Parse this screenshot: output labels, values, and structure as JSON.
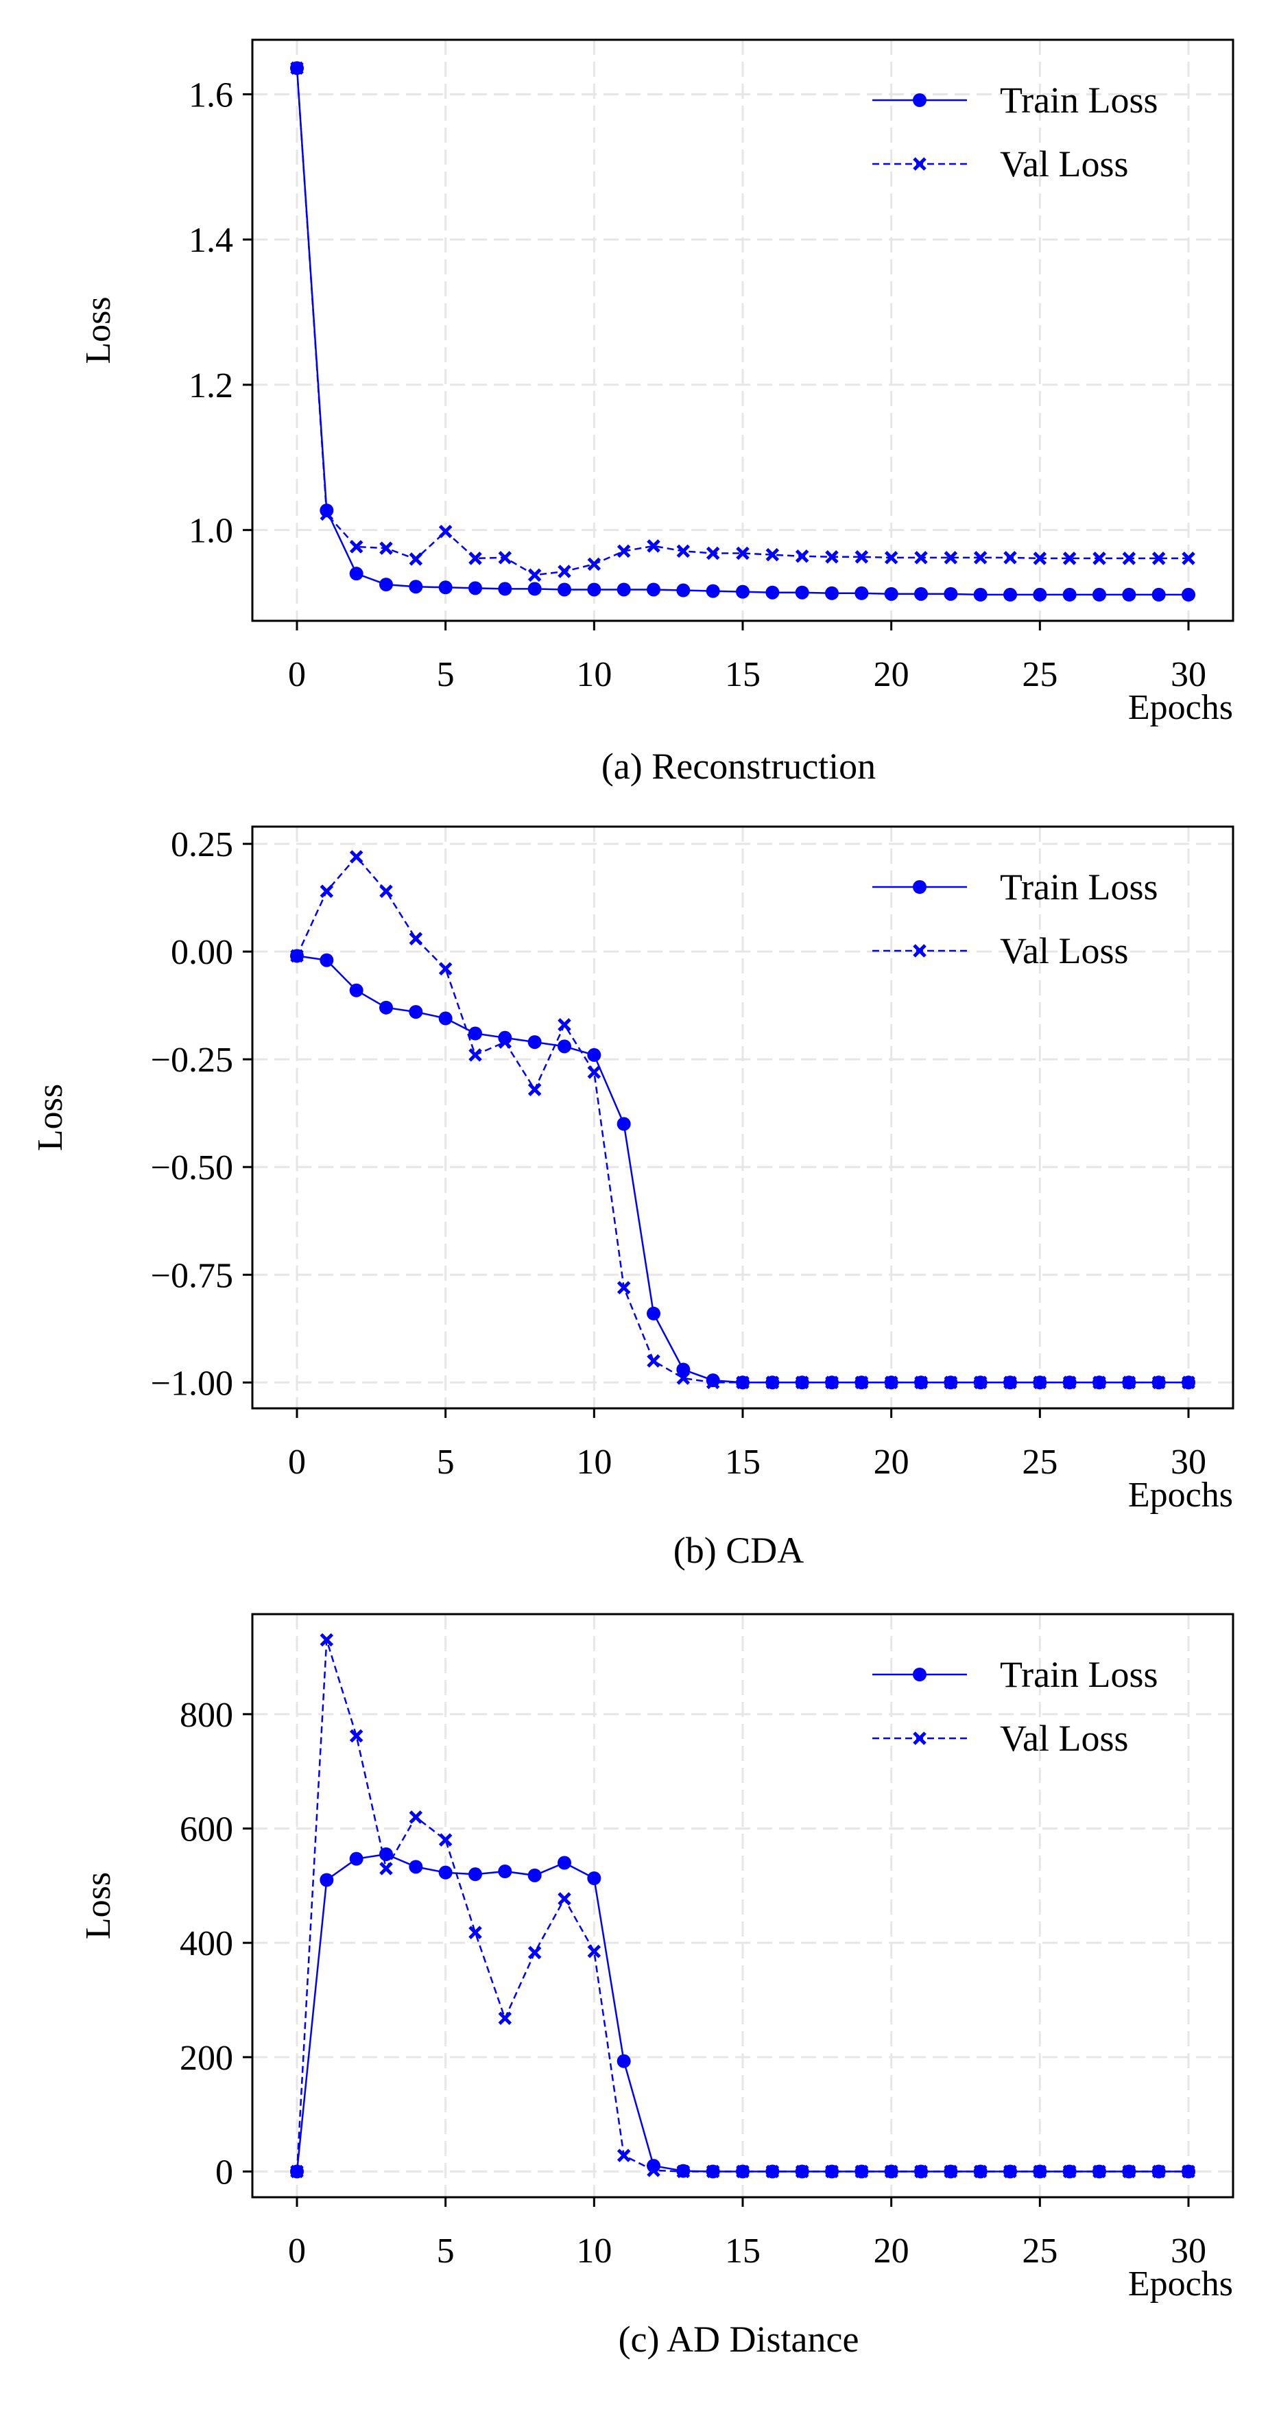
{
  "colors": {
    "series": "#0000ff",
    "grid": "#e6e6e6",
    "axis": "#000000"
  },
  "chart_data": [
    {
      "type": "line",
      "caption": "(a) Reconstruction",
      "xlabel": "Epochs",
      "ylabel": "Loss",
      "xlim": [
        -1.5,
        31.5
      ],
      "ylim": [
        0.875,
        1.675
      ],
      "xticks": [
        0,
        5,
        10,
        15,
        20,
        25,
        30
      ],
      "xtick_labels": [
        "0",
        "5",
        "10",
        "15",
        "20",
        "25",
        "30"
      ],
      "yticks": [
        1.0,
        1.2,
        1.4,
        1.6
      ],
      "ytick_labels": [
        "1.0",
        "1.2",
        "1.4",
        "1.6"
      ],
      "grid": true,
      "legend": "top-right",
      "x": [
        0,
        1,
        2,
        3,
        4,
        5,
        6,
        7,
        8,
        9,
        10,
        11,
        12,
        13,
        14,
        15,
        16,
        17,
        18,
        19,
        20,
        21,
        22,
        23,
        24,
        25,
        26,
        27,
        28,
        29,
        30
      ],
      "series": [
        {
          "name": "Train Loss",
          "style": "solid",
          "marker": "circle",
          "values": [
            1.636,
            1.027,
            0.94,
            0.925,
            0.922,
            0.921,
            0.92,
            0.919,
            0.919,
            0.918,
            0.918,
            0.918,
            0.918,
            0.917,
            0.916,
            0.915,
            0.914,
            0.914,
            0.913,
            0.913,
            0.912,
            0.912,
            0.912,
            0.911,
            0.911,
            0.911,
            0.911,
            0.911,
            0.911,
            0.911,
            0.911
          ]
        },
        {
          "name": "Val Loss",
          "style": "dashed",
          "marker": "x",
          "values": [
            1.636,
            1.022,
            0.977,
            0.975,
            0.96,
            0.998,
            0.961,
            0.962,
            0.938,
            0.943,
            0.953,
            0.971,
            0.978,
            0.971,
            0.968,
            0.968,
            0.966,
            0.964,
            0.963,
            0.963,
            0.962,
            0.962,
            0.962,
            0.962,
            0.962,
            0.961,
            0.961,
            0.961,
            0.961,
            0.961,
            0.961
          ]
        }
      ]
    },
    {
      "type": "line",
      "caption": "(b) CDA",
      "xlabel": "Epochs",
      "ylabel": "Loss",
      "xlim": [
        -1.5,
        31.5
      ],
      "ylim": [
        -1.06,
        0.29
      ],
      "xticks": [
        0,
        5,
        10,
        15,
        20,
        25,
        30
      ],
      "xtick_labels": [
        "0",
        "5",
        "10",
        "15",
        "20",
        "25",
        "30"
      ],
      "yticks": [
        -1.0,
        -0.75,
        -0.5,
        -0.25,
        0.0,
        0.25
      ],
      "ytick_labels": [
        "−1.00",
        "−0.75",
        "−0.50",
        "−0.25",
        "0.00",
        "0.25"
      ],
      "grid": true,
      "legend": "top-right",
      "x": [
        0,
        1,
        2,
        3,
        4,
        5,
        6,
        7,
        8,
        9,
        10,
        11,
        12,
        13,
        14,
        15,
        16,
        17,
        18,
        19,
        20,
        21,
        22,
        23,
        24,
        25,
        26,
        27,
        28,
        29,
        30
      ],
      "series": [
        {
          "name": "Train Loss",
          "style": "solid",
          "marker": "circle",
          "values": [
            -0.01,
            -0.02,
            -0.09,
            -0.13,
            -0.14,
            -0.155,
            -0.19,
            -0.2,
            -0.21,
            -0.22,
            -0.24,
            -0.4,
            -0.84,
            -0.97,
            -0.995,
            -1.0,
            -1.0,
            -1.0,
            -1.0,
            -1.0,
            -1.0,
            -1.0,
            -1.0,
            -1.0,
            -1.0,
            -1.0,
            -1.0,
            -1.0,
            -1.0,
            -1.0,
            -1.0
          ]
        },
        {
          "name": "Val Loss",
          "style": "dashed",
          "marker": "x",
          "values": [
            -0.01,
            0.14,
            0.22,
            0.14,
            0.03,
            -0.04,
            -0.24,
            -0.21,
            -0.32,
            -0.17,
            -0.28,
            -0.78,
            -0.95,
            -0.99,
            -1.0,
            -1.0,
            -1.0,
            -1.0,
            -1.0,
            -1.0,
            -1.0,
            -1.0,
            -1.0,
            -1.0,
            -1.0,
            -1.0,
            -1.0,
            -1.0,
            -1.0,
            -1.0,
            -1.0
          ]
        }
      ]
    },
    {
      "type": "line",
      "caption": "(c) AD Distance",
      "xlabel": "Epochs",
      "ylabel": "Loss",
      "xlim": [
        -1.5,
        31.5
      ],
      "ylim": [
        -45,
        975
      ],
      "xticks": [
        0,
        5,
        10,
        15,
        20,
        25,
        30
      ],
      "xtick_labels": [
        "0",
        "5",
        "10",
        "15",
        "20",
        "25",
        "30"
      ],
      "yticks": [
        0,
        200,
        400,
        600,
        800
      ],
      "ytick_labels": [
        "0",
        "200",
        "400",
        "600",
        "800"
      ],
      "grid": true,
      "legend": "top-right",
      "x": [
        0,
        1,
        2,
        3,
        4,
        5,
        6,
        7,
        8,
        9,
        10,
        11,
        12,
        13,
        14,
        15,
        16,
        17,
        18,
        19,
        20,
        21,
        22,
        23,
        24,
        25,
        26,
        27,
        28,
        29,
        30
      ],
      "series": [
        {
          "name": "Train Loss",
          "style": "solid",
          "marker": "circle",
          "values": [
            0,
            510,
            547,
            555,
            533,
            523,
            520,
            525,
            518,
            540,
            513,
            193,
            10,
            1,
            0,
            0,
            0,
            0,
            0,
            0,
            0,
            0,
            0,
            0,
            0,
            0,
            0,
            0,
            0,
            0,
            0
          ]
        },
        {
          "name": "Val Loss",
          "style": "dashed",
          "marker": "x",
          "values": [
            0,
            930,
            762,
            530,
            620,
            580,
            418,
            268,
            383,
            477,
            385,
            28,
            2,
            0,
            0,
            0,
            0,
            0,
            0,
            0,
            0,
            0,
            0,
            0,
            0,
            0,
            0,
            0,
            0,
            0,
            0
          ]
        }
      ]
    }
  ]
}
